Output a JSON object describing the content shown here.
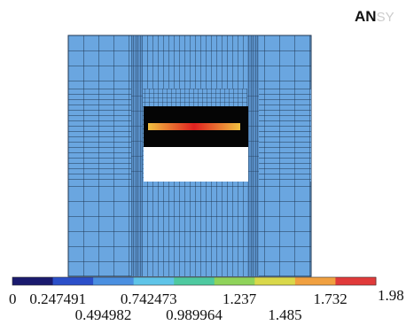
{
  "logo": {
    "bold": "AN",
    "light": "SY"
  },
  "legend": {
    "range": [
      0,
      1.98
    ],
    "ticks": [
      0,
      0.247491,
      0.494982,
      0.742473,
      0.989964,
      1.237,
      1.485,
      1.732,
      1.98
    ],
    "colors": [
      "#1a1a6e",
      "#2b4fc9",
      "#4a8fe0",
      "#5fc4e8",
      "#4ec9a0",
      "#8fd35a",
      "#d9d84a",
      "#f0a040",
      "#e03a3a"
    ]
  }
}
